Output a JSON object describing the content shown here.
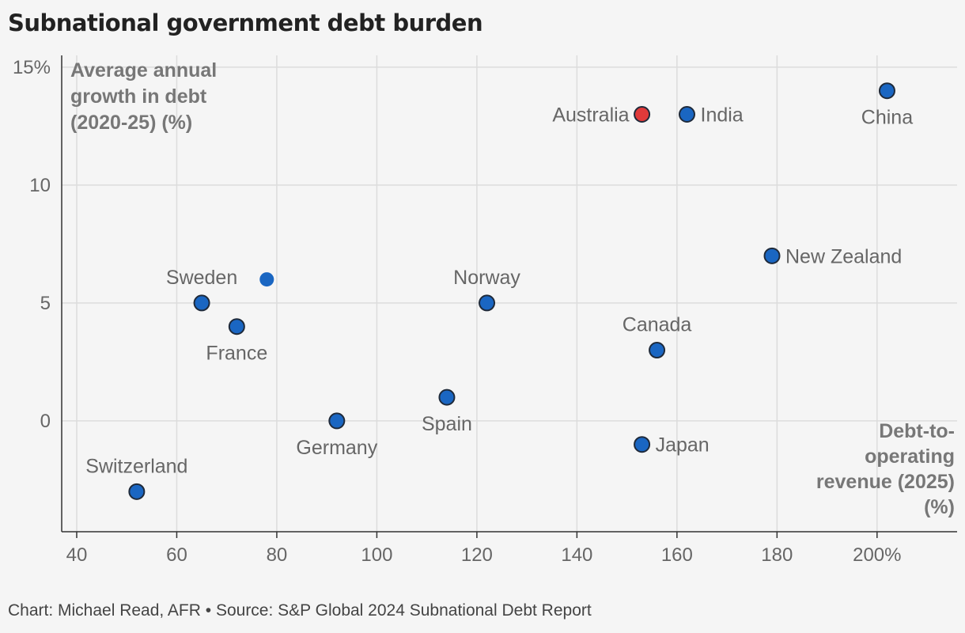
{
  "title": "Subnational government debt burden",
  "footer": "Chart: Michael Read, AFR • Source: S&P Global 2024 Subnational Debt Report",
  "chart_data": {
    "type": "scatter",
    "ylabel_lines": [
      "Average annual",
      "growth in debt",
      "(2020-25) (%)"
    ],
    "xlabel_lines": [
      "Debt-to-",
      "operating",
      "revenue (2025)",
      "(%)"
    ],
    "xlim": [
      37,
      216
    ],
    "ylim": [
      -4.7,
      15.5
    ],
    "x_ticks": [
      {
        "v": 40,
        "label": "40"
      },
      {
        "v": 60,
        "label": "60"
      },
      {
        "v": 80,
        "label": "80"
      },
      {
        "v": 100,
        "label": "100"
      },
      {
        "v": 120,
        "label": "120"
      },
      {
        "v": 140,
        "label": "140"
      },
      {
        "v": 160,
        "label": "160"
      },
      {
        "v": 180,
        "label": "180"
      },
      {
        "v": 200,
        "label": "200%"
      }
    ],
    "y_ticks": [
      {
        "v": 15,
        "label": "15%"
      },
      {
        "v": 10,
        "label": "10"
      },
      {
        "v": 5,
        "label": "5"
      },
      {
        "v": 0,
        "label": "0"
      }
    ],
    "colors": {
      "default": "#1a66c2",
      "highlight": "#e03a3a",
      "outline": "#1f2a3a"
    },
    "points": [
      {
        "name": "China",
        "x": 202,
        "y": 14,
        "label_pos": "below"
      },
      {
        "name": "Australia",
        "x": 153,
        "y": 13,
        "label_pos": "left",
        "highlight": true
      },
      {
        "name": "India",
        "x": 162,
        "y": 13,
        "label_pos": "right"
      },
      {
        "name": "New Zealand",
        "x": 179,
        "y": 7,
        "label_pos": "right"
      },
      {
        "name": "Sweden",
        "x": 65,
        "y": 5,
        "label_pos": "above"
      },
      {
        "name": "",
        "x": 78,
        "y": 6,
        "label_pos": "none",
        "no_outline": true
      },
      {
        "name": "France",
        "x": 72,
        "y": 4,
        "label_pos": "below"
      },
      {
        "name": "Norway",
        "x": 122,
        "y": 5,
        "label_pos": "above"
      },
      {
        "name": "Canada",
        "x": 156,
        "y": 3,
        "label_pos": "above"
      },
      {
        "name": "Spain",
        "x": 114,
        "y": 1,
        "label_pos": "below"
      },
      {
        "name": "Germany",
        "x": 92,
        "y": 0,
        "label_pos": "below"
      },
      {
        "name": "Japan",
        "x": 153,
        "y": -1,
        "label_pos": "right"
      },
      {
        "name": "Switzerland",
        "x": 52,
        "y": -3,
        "label_pos": "above"
      }
    ]
  }
}
